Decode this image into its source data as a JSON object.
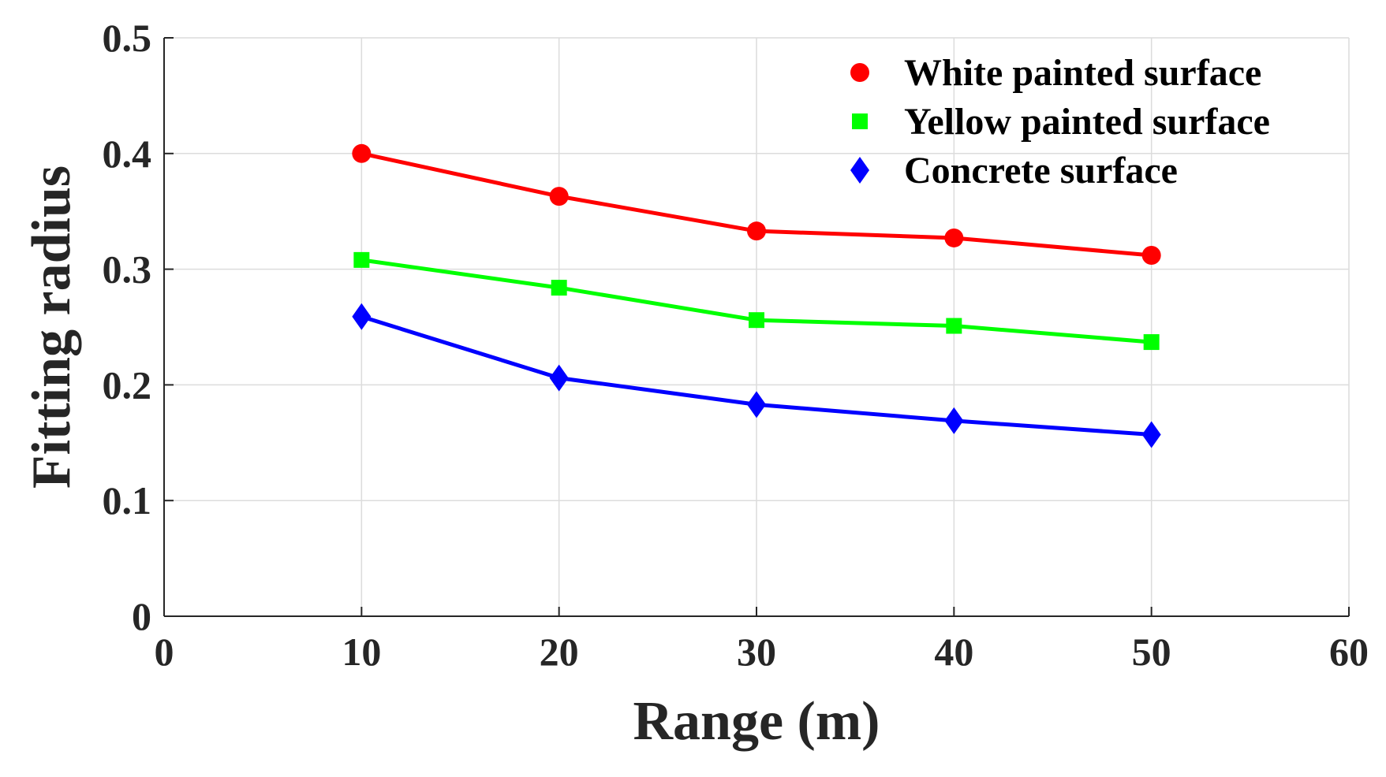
{
  "chart_data": {
    "type": "line",
    "title": "",
    "xlabel": "Range (m)",
    "ylabel": "Fitting radius",
    "xlim": [
      0,
      60
    ],
    "ylim": [
      0,
      0.5
    ],
    "x_ticks": [
      0,
      10,
      20,
      30,
      40,
      50,
      60
    ],
    "x_tick_labels": [
      "0",
      "10",
      "20",
      "30",
      "40",
      "50",
      "60"
    ],
    "y_ticks": [
      0,
      0.1,
      0.2,
      0.3,
      0.4,
      0.5
    ],
    "y_tick_labels": [
      "0",
      "0.1",
      "0.2",
      "0.3",
      "0.4",
      "0.5"
    ],
    "grid": true,
    "legend_position": "top-right",
    "x": [
      10,
      20,
      30,
      40,
      50
    ],
    "series": [
      {
        "name": "White painted surface",
        "marker": "circle",
        "color": "#ff0000",
        "values": [
          0.4,
          0.363,
          0.333,
          0.327,
          0.312
        ]
      },
      {
        "name": "Yellow painted surface",
        "marker": "square",
        "color": "#00ff00",
        "values": [
          0.308,
          0.284,
          0.256,
          0.251,
          0.237
        ]
      },
      {
        "name": "Concrete surface",
        "marker": "diamond",
        "color": "#0000ff",
        "values": [
          0.259,
          0.206,
          0.183,
          0.169,
          0.157
        ]
      }
    ]
  }
}
